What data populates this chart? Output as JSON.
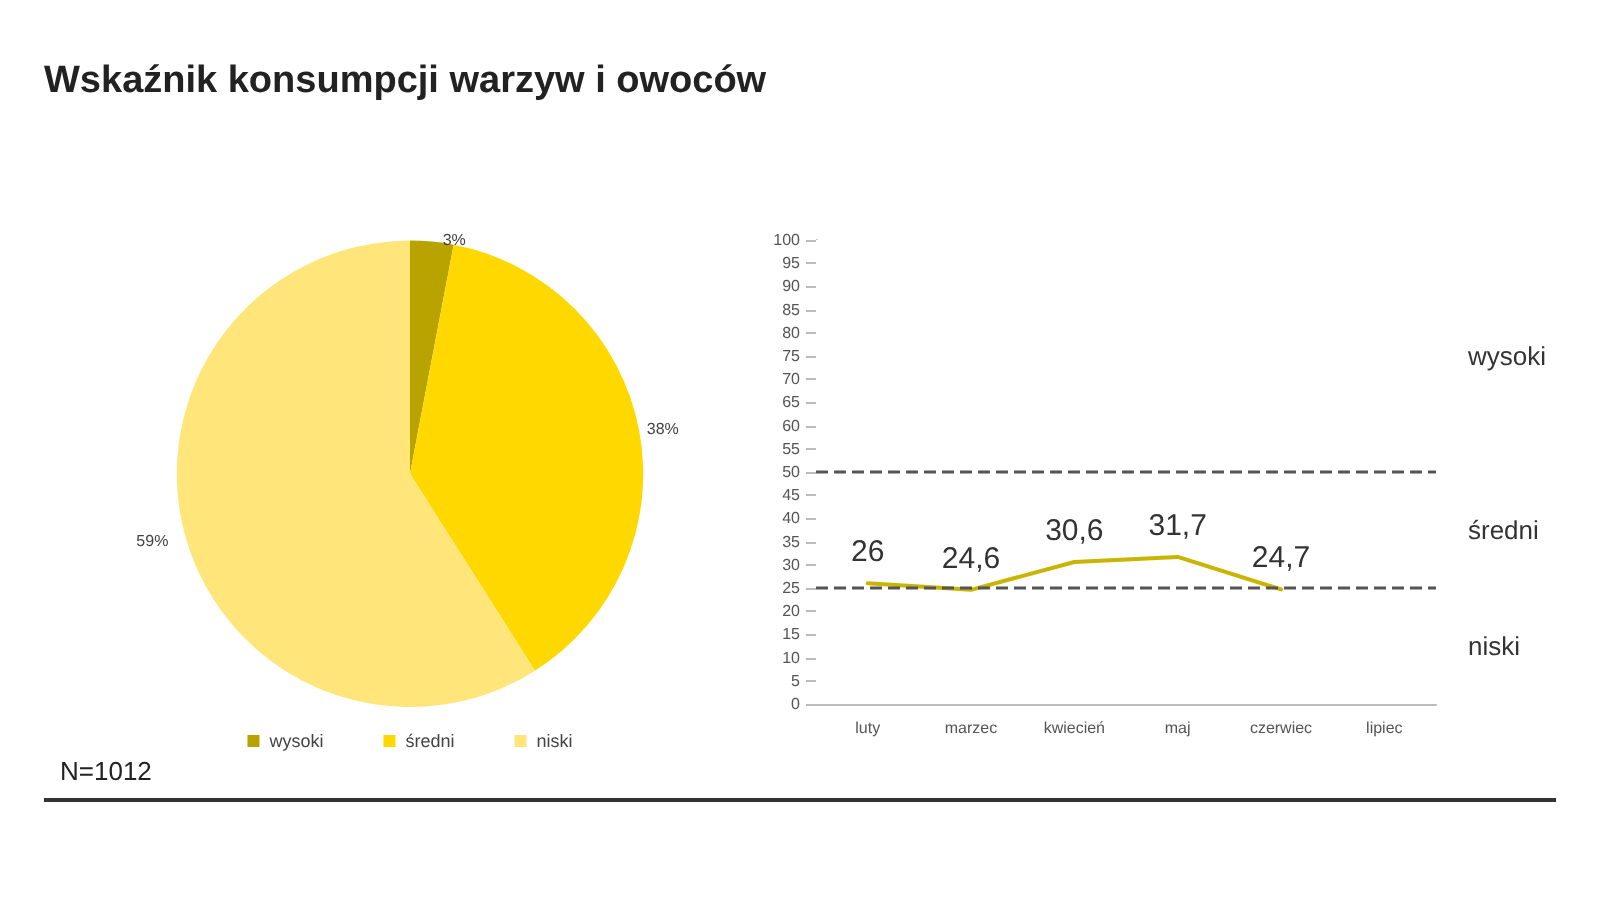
{
  "chart_data": [
    {
      "type": "pie",
      "title": "Wskaźnik konsumpcji warzyw i owoców",
      "categories": [
        "wysoki",
        "średni",
        "niski"
      ],
      "values": [
        3,
        38,
        59
      ],
      "value_labels": [
        "3%",
        "38%",
        "59%"
      ],
      "colors": [
        "#b8a300",
        "#ffd800",
        "#ffe57a"
      ],
      "legend": "bottom",
      "annotations": [
        "N=1012"
      ]
    },
    {
      "type": "line",
      "categories": [
        "luty",
        "marzec",
        "kwiecień",
        "maj",
        "czerwiec",
        "lipiec"
      ],
      "series": [
        {
          "color": "#c9b400",
          "values": [
            26,
            24.6,
            30.6,
            31.7,
            24.7,
            null
          ],
          "value_labels": [
            "26",
            "24,6",
            "30,6",
            "31,7",
            "24,7",
            null
          ]
        }
      ],
      "ylim": [
        0,
        100
      ],
      "yticks": [
        0,
        5,
        10,
        15,
        20,
        25,
        30,
        35,
        40,
        45,
        50,
        55,
        60,
        65,
        70,
        75,
        80,
        85,
        90,
        95,
        100
      ],
      "marker": "none",
      "line_style": "solid",
      "grid": false,
      "legend": false,
      "ref_lines": [
        {
          "axis": "y",
          "value": 50,
          "line_style": "dashed",
          "color": "#555555"
        },
        {
          "axis": "y",
          "value": 25,
          "line_style": "dashed",
          "color": "#555555"
        }
      ],
      "bands": [
        {
          "axis": "y",
          "from": 50,
          "to": 100,
          "label": "wysoki",
          "color": "#ffffff"
        },
        {
          "axis": "y",
          "from": 25,
          "to": 50,
          "label": "średni",
          "color": "#ffffff"
        },
        {
          "axis": "y",
          "from": 0,
          "to": 25,
          "label": "niski",
          "color": "#ffffff"
        }
      ]
    }
  ]
}
